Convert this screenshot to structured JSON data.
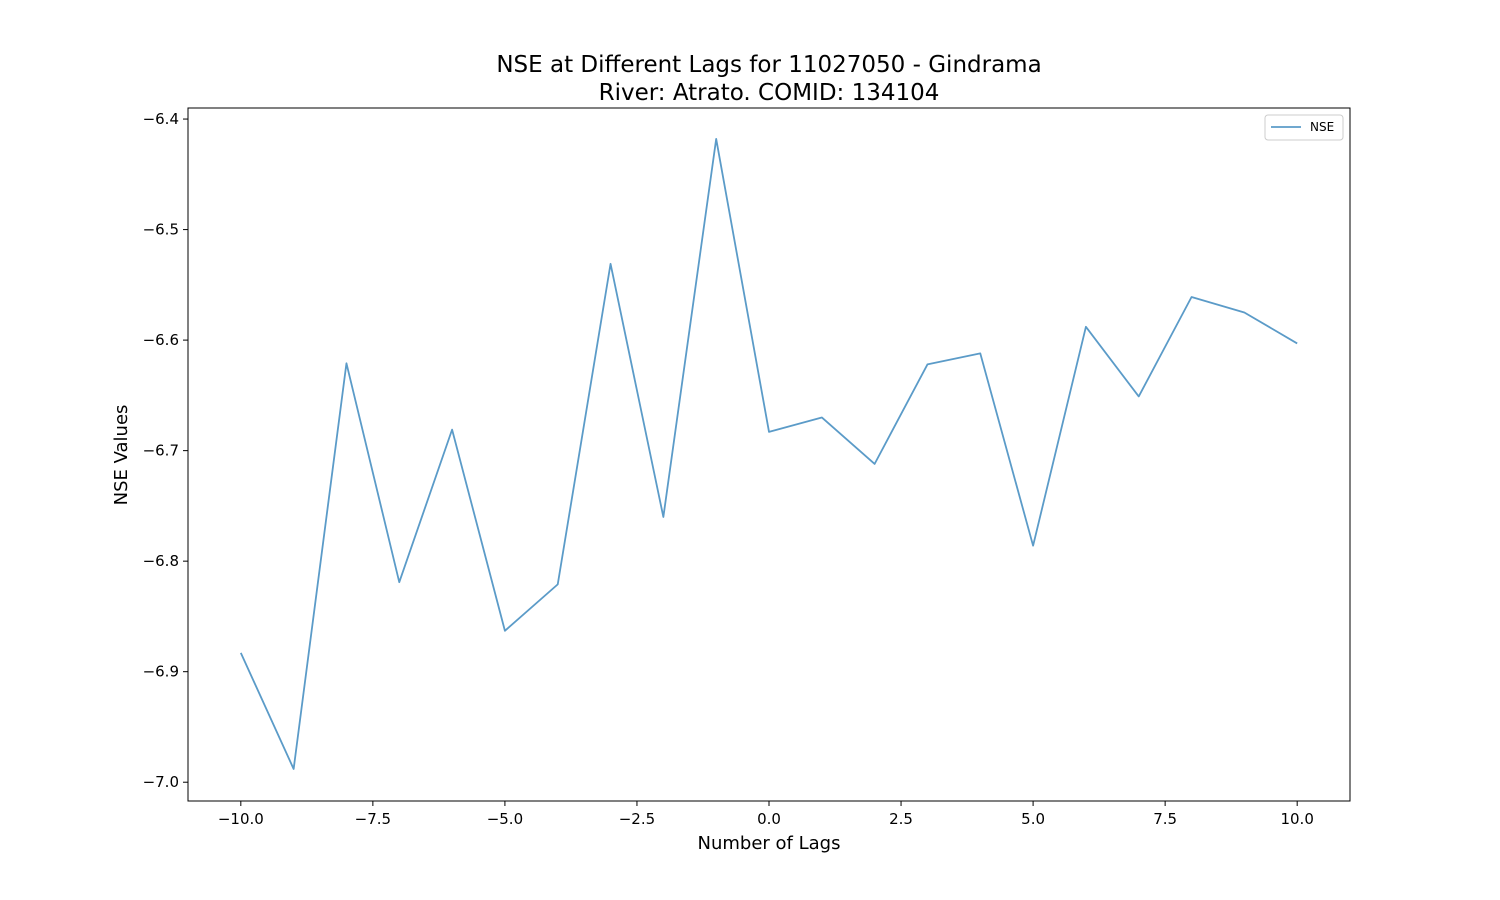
{
  "chart_data": {
    "type": "line",
    "title": "NSE at Different Lags for 11027050 - Gindrama",
    "subtitle": "River: Atrato. COMID: 134104",
    "xlabel": "Number of Lags",
    "ylabel": "NSE Values",
    "xlim": [
      -11,
      11
    ],
    "ylim": [
      -7.017,
      -6.39
    ],
    "x_ticks": [
      -10.0,
      -7.5,
      -5.0,
      -2.5,
      0.0,
      2.5,
      5.0,
      7.5,
      10.0
    ],
    "x_tick_labels": [
      "−10.0",
      "−7.5",
      "−5.0",
      "−2.5",
      "0.0",
      "2.5",
      "5.0",
      "7.5",
      "10.0"
    ],
    "y_ticks": [
      -7.0,
      -6.9,
      -6.8,
      -6.7,
      -6.6,
      -6.5,
      -6.4
    ],
    "y_tick_labels": [
      "−7.0",
      "−6.9",
      "−6.8",
      "−6.7",
      "−6.6",
      "−6.5",
      "−6.4"
    ],
    "grid": false,
    "legend_position": "top-right",
    "series": [
      {
        "name": "NSE",
        "color": "#5b9bc8",
        "x": [
          -10,
          -9,
          -8,
          -7,
          -6,
          -5,
          -4,
          -3,
          -2,
          -1,
          0,
          1,
          2,
          3,
          4,
          5,
          6,
          7,
          8,
          9,
          10
        ],
        "y": [
          -6.883,
          -6.988,
          -6.621,
          -6.819,
          -6.681,
          -6.863,
          -6.821,
          -6.531,
          -6.76,
          -6.418,
          -6.683,
          -6.67,
          -6.712,
          -6.622,
          -6.612,
          -6.786,
          -6.588,
          -6.651,
          -6.561,
          -6.575,
          -6.603
        ]
      }
    ]
  }
}
